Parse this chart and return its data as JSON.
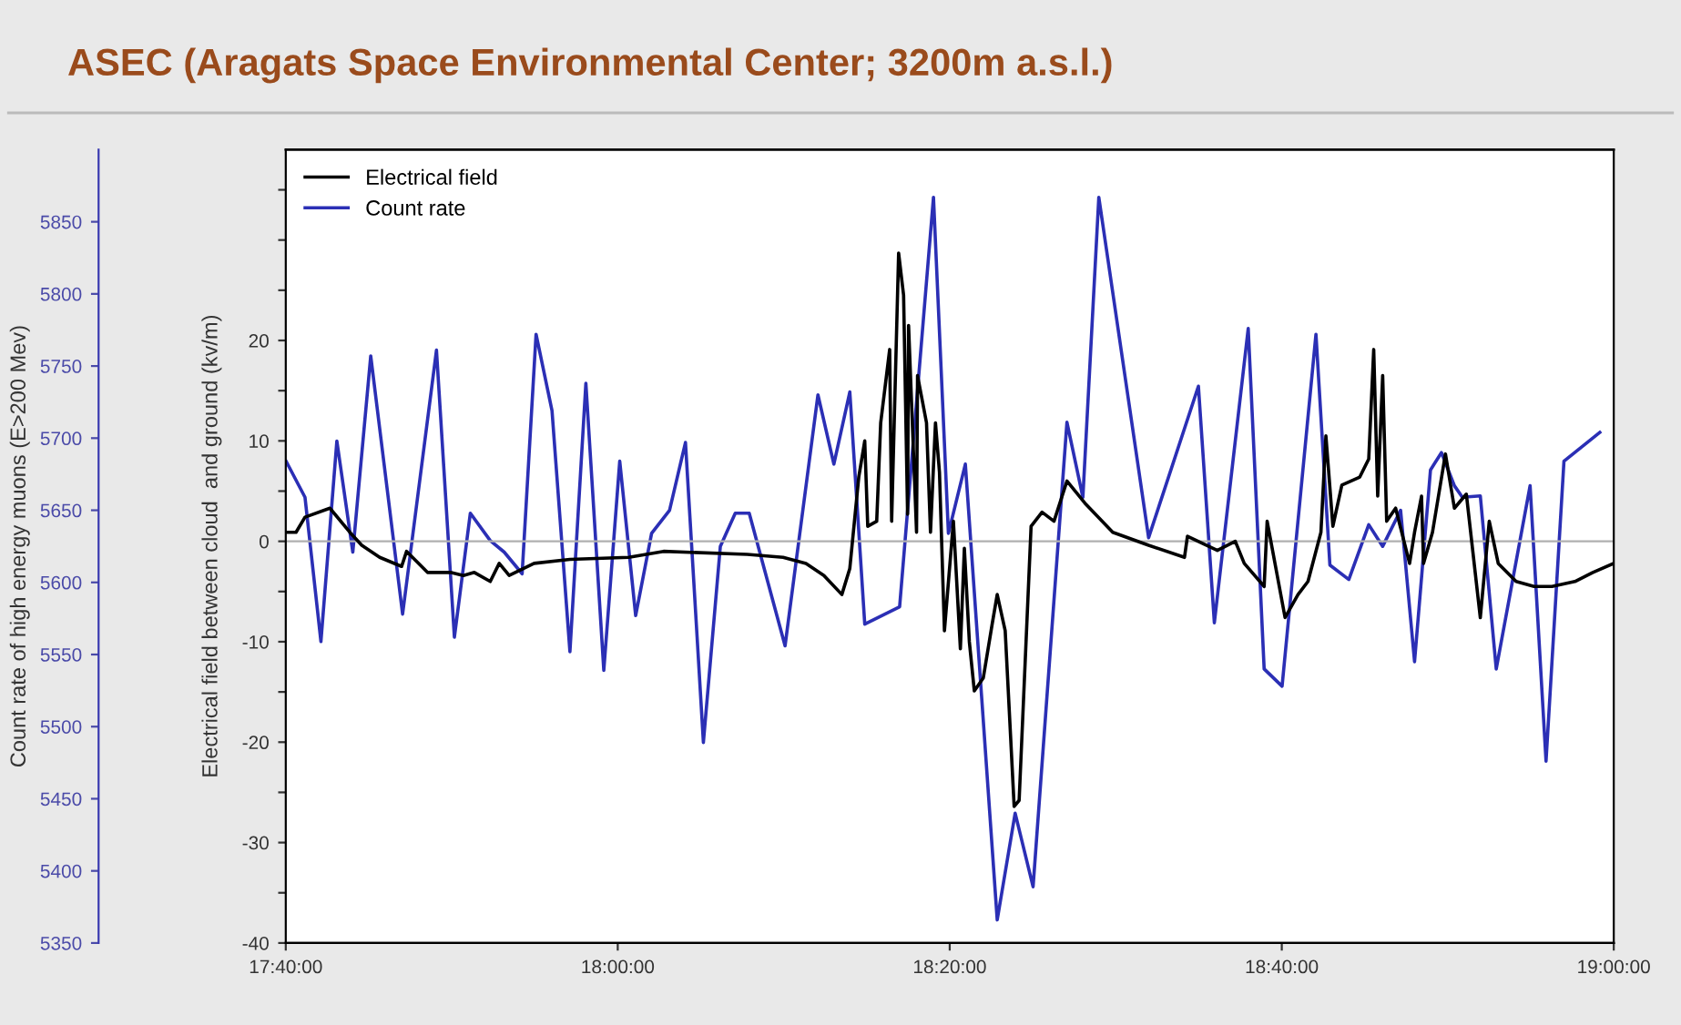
{
  "chart_data": {
    "type": "line",
    "title": "ASEC (Aragats Space Environmental Center; 3200m a.s.l.)",
    "ylabel": "Electrical field between cloud  and ground (kv/m)",
    "y2label": "Count rate of high energy muons (E>200 Mev)",
    "xlim": [
      17.6667,
      19
    ],
    "xticks": [
      {
        "value": 17.6667,
        "label": "17:40:00"
      },
      {
        "value": 18,
        "label": "18:00:00"
      },
      {
        "value": 18.3333,
        "label": "18:20:00"
      },
      {
        "value": 18.6667,
        "label": "18:40:00"
      },
      {
        "value": 19,
        "label": "19:00:00"
      }
    ],
    "ylim": [
      -40,
      39
    ],
    "yticks": [
      -40,
      {
        "value": -35,
        "label": null
      },
      -30,
      {
        "value": -25,
        "label": null
      },
      -20,
      {
        "value": -15,
        "label": null
      },
      -10,
      {
        "value": -5,
        "label": null
      },
      0,
      {
        "value": 5,
        "label": null
      },
      10,
      {
        "value": 15,
        "label": null
      },
      20,
      {
        "value": 25,
        "label": null
      },
      {
        "value": 30,
        "label": null
      },
      {
        "value": 35,
        "label": null
      }
    ],
    "y2lim": [
      5350,
      5900
    ],
    "y2ticks": [
      5350,
      5400,
      5450,
      5500,
      5550,
      5600,
      5650,
      5700,
      5750,
      5800,
      5850
    ],
    "legend": "top left",
    "grid": false,
    "ref_lines": [
      {
        "axis": "y",
        "value": 0,
        "label": null,
        "color": "#b0b0b0"
      }
    ],
    "series": [
      {
        "name": "Electrical field",
        "color": "#000000",
        "x": [
          17.667,
          17.677,
          17.686,
          17.711,
          17.731,
          17.743,
          17.761,
          17.783,
          17.788,
          17.809,
          17.832,
          17.845,
          17.856,
          17.872,
          17.881,
          17.891,
          17.916,
          17.952,
          18.011,
          18.046,
          18.13,
          18.166,
          18.189,
          18.207,
          18.225,
          18.233,
          18.242,
          18.248,
          18.251,
          18.26,
          18.264,
          18.273,
          18.275,
          18.282,
          18.287,
          18.291,
          18.292,
          18.3,
          18.301,
          18.31,
          18.314,
          18.319,
          18.323,
          18.328,
          18.337,
          18.344,
          18.348,
          18.353,
          18.358,
          18.367,
          18.376,
          18.381,
          18.389,
          18.398,
          18.403,
          18.415,
          18.426,
          18.438,
          18.451,
          18.469,
          18.497,
          18.533,
          18.569,
          18.572,
          18.602,
          18.62,
          18.629,
          18.649,
          18.652,
          18.67,
          18.683,
          18.693,
          18.706,
          18.711,
          18.718,
          18.727,
          18.745,
          18.754,
          18.759,
          18.763,
          18.768,
          18.772,
          18.781,
          18.795,
          18.8,
          18.807,
          18.809,
          18.818,
          18.831,
          18.84,
          18.852,
          18.866,
          18.875,
          18.884,
          18.902,
          18.92,
          18.938,
          18.961,
          18.979,
          19.0
        ],
        "values": [
          0.9,
          0.9,
          2.4,
          3.3,
          0.9,
          -0.4,
          -1.6,
          -2.5,
          -1,
          -3.1,
          -3.1,
          -3.4,
          -3.1,
          -4,
          -2.2,
          -3.4,
          -2.2,
          -1.8,
          -1.6,
          -1,
          -1.3,
          -1.6,
          -2.2,
          -3.4,
          -5.3,
          -2.7,
          6.4,
          10,
          1.5,
          2,
          11.8,
          19.1,
          2,
          28.7,
          24.5,
          2.7,
          21.5,
          0.9,
          16.5,
          11.8,
          0.9,
          11.8,
          6.9,
          -8.9,
          2,
          -10.7,
          -0.7,
          -10,
          -14.9,
          -13.6,
          -8.2,
          -5.3,
          -8.9,
          -26.4,
          -25.8,
          1.5,
          2.9,
          2,
          6,
          3.8,
          0.9,
          -0.4,
          -1.6,
          0.5,
          -0.9,
          0,
          -2.2,
          -4.5,
          2,
          -7.6,
          -5.3,
          -4,
          0.9,
          10.5,
          1.5,
          5.6,
          6.4,
          8.2,
          19.1,
          4.5,
          16.5,
          2,
          3.3,
          -2.2,
          0.9,
          4.5,
          -2.2,
          0.9,
          8.7,
          3.3,
          4.7,
          -7.6,
          2,
          -2.2,
          -4,
          -4.5,
          -4.5,
          -4,
          -3.1,
          -2.2
        ]
      },
      {
        "name": "Count rate",
        "color": "#2b2fb5",
        "axis": "y2",
        "x": [
          17.667,
          17.686,
          17.702,
          17.718,
          17.734,
          17.752,
          17.784,
          17.818,
          17.836,
          17.852,
          17.872,
          17.886,
          17.904,
          17.918,
          17.934,
          17.952,
          17.968,
          17.986,
          18.002,
          18.018,
          18.034,
          18.052,
          18.068,
          18.086,
          18.103,
          18.118,
          18.132,
          18.168,
          18.201,
          18.217,
          18.233,
          18.248,
          18.283,
          18.317,
          18.332,
          18.349,
          18.381,
          18.399,
          18.417,
          18.451,
          18.467,
          18.483,
          18.533,
          18.583,
          18.599,
          18.633,
          18.649,
          18.667,
          18.701,
          18.715,
          18.734,
          18.754,
          18.768,
          18.786,
          18.8,
          18.816,
          18.827,
          18.84,
          18.848,
          18.866,
          18.882,
          18.916,
          18.932,
          18.95,
          18.986
        ],
        "values": [
          5684,
          5659,
          5559,
          5698,
          5621,
          5757,
          5578,
          5761,
          5562,
          5648,
          5629,
          5621,
          5606,
          5772,
          5719,
          5552,
          5738,
          5539,
          5684,
          5577,
          5634,
          5650,
          5697,
          5489,
          5625,
          5648,
          5648,
          5556,
          5730,
          5682,
          5732,
          5571,
          5583,
          5867,
          5634,
          5682,
          5366,
          5440,
          5389,
          5711,
          5659,
          5867,
          5631,
          5736,
          5572,
          5776,
          5540,
          5528,
          5772,
          5612,
          5602,
          5640,
          5625,
          5650,
          5545,
          5678,
          5690,
          5667,
          5659,
          5660,
          5540,
          5667,
          5476,
          5684,
          5704
        ]
      }
    ]
  }
}
